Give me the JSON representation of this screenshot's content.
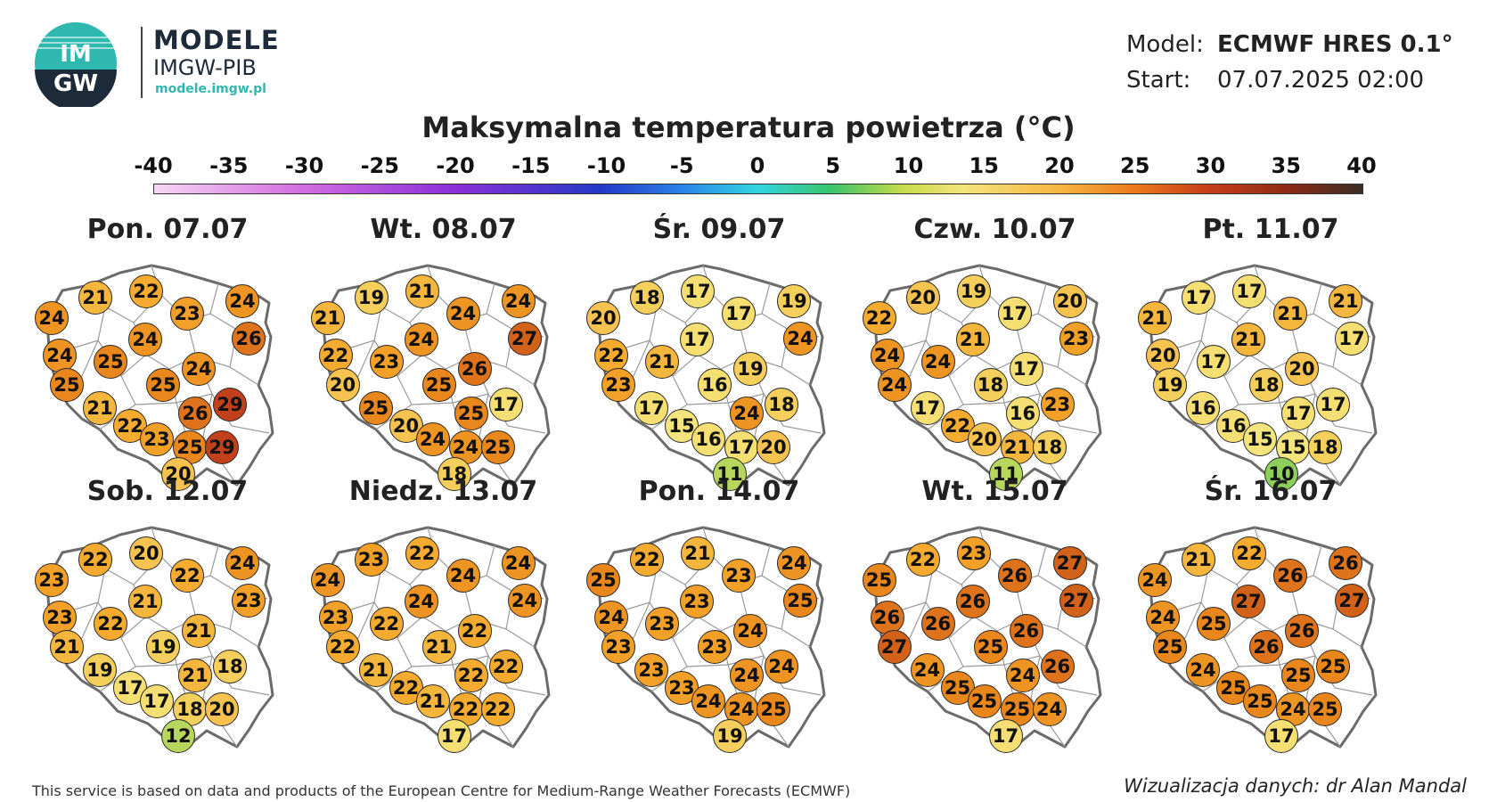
{
  "brand": {
    "logo_letters_top": "IM",
    "logo_letters_bottom": "GW",
    "name": "MODELE",
    "org": "IMGW-PIB",
    "url": "modele.imgw.pl",
    "colors": {
      "teal": "#2fb8b0",
      "navy": "#1c2a3a"
    }
  },
  "model_info": {
    "model_label": "Model:",
    "model_value": "ECMWF HRES 0.1°",
    "start_label": "Start:",
    "start_value": "07.07.2025 02:00"
  },
  "title": "Maksymalna temperatura powietrza (°C)",
  "scale": {
    "ticks": [
      "-40",
      "-35",
      "-30",
      "-25",
      "-20",
      "-15",
      "-10",
      "-5",
      "0",
      "5",
      "10",
      "15",
      "20",
      "25",
      "30",
      "35",
      "40"
    ]
  },
  "days": [
    {
      "label": "Pon. 07.07",
      "temps": [
        24,
        21,
        22,
        23,
        24,
        26,
        24,
        25,
        24,
        25,
        25,
        24,
        29,
        21,
        26,
        22,
        23,
        25,
        29,
        20
      ]
    },
    {
      "label": "Wt. 08.07",
      "temps": [
        21,
        19,
        21,
        24,
        24,
        27,
        22,
        23,
        24,
        20,
        25,
        26,
        17,
        25,
        25,
        20,
        24,
        24,
        25,
        18
      ]
    },
    {
      "label": "Śr. 09.07",
      "temps": [
        20,
        18,
        17,
        17,
        19,
        24,
        22,
        21,
        17,
        23,
        16,
        19,
        18,
        17,
        24,
        15,
        16,
        17,
        20,
        11
      ]
    },
    {
      "label": "Czw. 10.07",
      "temps": [
        22,
        20,
        19,
        17,
        20,
        23,
        24,
        24,
        21,
        24,
        18,
        17,
        23,
        17,
        16,
        22,
        20,
        21,
        18,
        11
      ]
    },
    {
      "label": "Pt. 11.07",
      "temps": [
        21,
        17,
        17,
        21,
        21,
        17,
        20,
        17,
        21,
        19,
        18,
        20,
        17,
        16,
        17,
        16,
        15,
        15,
        18,
        10
      ]
    },
    {
      "label": "Sob. 12.07",
      "temps": [
        23,
        22,
        20,
        22,
        24,
        23,
        23,
        22,
        21,
        21,
        19,
        21,
        18,
        19,
        21,
        17,
        17,
        18,
        20,
        12
      ]
    },
    {
      "label": "Niedz. 13.07",
      "temps": [
        24,
        23,
        22,
        24,
        24,
        24,
        23,
        22,
        24,
        22,
        21,
        22,
        22,
        21,
        22,
        22,
        21,
        22,
        22,
        17
      ]
    },
    {
      "label": "Pon. 14.07",
      "temps": [
        25,
        22,
        21,
        23,
        24,
        25,
        24,
        23,
        23,
        23,
        23,
        24,
        24,
        23,
        24,
        23,
        24,
        24,
        25,
        19
      ]
    },
    {
      "label": "Wt. 15.07",
      "temps": [
        25,
        22,
        23,
        26,
        27,
        27,
        26,
        26,
        26,
        27,
        25,
        26,
        26,
        24,
        24,
        25,
        25,
        25,
        24,
        17
      ]
    },
    {
      "label": "Śr. 16.07",
      "temps": [
        24,
        21,
        22,
        26,
        26,
        27,
        24,
        25,
        27,
        25,
        26,
        26,
        25,
        24,
        25,
        25,
        25,
        24,
        25,
        17
      ]
    }
  ],
  "footer": {
    "disclaimer": "This service is based on data and products of the European Centre for Medium-Range Weather Forecasts (ECMWF)",
    "credit": "Wizualizacja danych: dr Alan Mandal"
  }
}
